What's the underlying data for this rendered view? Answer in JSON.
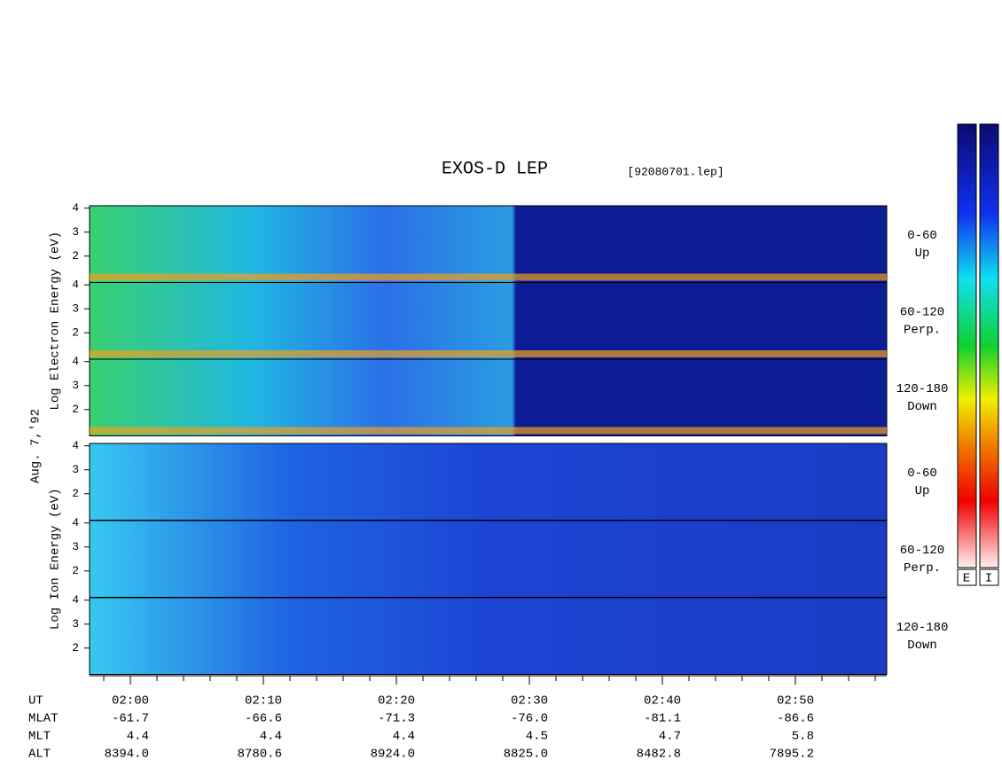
{
  "chart_data": {
    "type": "spectrogram",
    "title": "EXOS-D LEP",
    "subtitle": "[92080701.lep]",
    "date_label": "Aug. 7,'92",
    "ylim": [
      0.9,
      4.1
    ],
    "yticks": [
      2,
      3,
      4
    ],
    "species": [
      {
        "y_label": "Log Electron Energy (eV)",
        "panels": [
          {
            "angle": "0-60",
            "direction": "Up"
          },
          {
            "angle": "60-120",
            "direction": "Perp."
          },
          {
            "angle": "120-180",
            "direction": "Down"
          }
        ]
      },
      {
        "y_label": "Log Ion Energy (eV)",
        "panels": [
          {
            "angle": "0-60",
            "direction": "Up"
          },
          {
            "angle": "60-120",
            "direction": "Perp."
          },
          {
            "angle": "120-180",
            "direction": "Down"
          }
        ]
      }
    ],
    "colorbar_labels": [
      "E",
      "I"
    ],
    "x_rows": [
      {
        "label": "UT",
        "values": [
          "02:00",
          "02:10",
          "02:20",
          "02:30",
          "02:40",
          "02:50"
        ]
      },
      {
        "label": "MLAT",
        "values": [
          "-61.7",
          "-66.6",
          "-71.3",
          "-76.0",
          "-81.1",
          "-86.6"
        ]
      },
      {
        "label": "MLT",
        "values": [
          "4.4",
          "4.4",
          "4.4",
          "4.5",
          "4.7",
          "5.8"
        ]
      },
      {
        "label": "ALT",
        "values": [
          "8394.0",
          "8780.6",
          "8924.0",
          "8825.0",
          "8482.8",
          "7895.2"
        ]
      }
    ]
  }
}
